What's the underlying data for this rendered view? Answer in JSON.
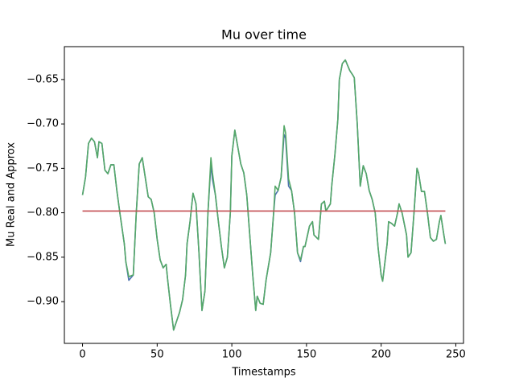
{
  "chart_data": {
    "type": "line",
    "title": "Mu over time",
    "xlabel": "Timestamps",
    "ylabel": "Mu Real and Approx",
    "x": [
      0,
      2,
      4,
      6,
      8,
      10,
      11,
      13,
      15,
      17,
      19,
      21,
      23,
      25,
      28,
      29,
      31,
      34,
      36,
      38,
      40,
      42,
      44,
      46,
      48,
      50,
      52,
      54,
      56,
      57,
      59,
      61,
      63,
      65,
      67,
      69,
      70,
      72,
      74,
      76,
      78,
      80,
      82,
      84,
      86,
      87,
      89,
      91,
      93,
      95,
      97,
      99,
      100,
      102,
      104,
      106,
      108,
      110,
      112,
      114,
      116,
      117,
      119,
      121,
      123,
      126,
      128,
      129,
      131,
      133,
      135,
      136,
      138,
      140,
      142,
      144,
      146,
      148,
      149,
      152,
      154,
      155,
      158,
      160,
      162,
      163,
      166,
      167,
      169,
      171,
      172,
      174,
      176,
      179,
      181,
      182,
      184,
      186,
      188,
      190,
      192,
      194,
      196,
      198,
      200,
      201,
      204,
      205,
      207,
      209,
      211,
      212,
      214,
      217,
      218,
      220,
      222,
      224,
      225,
      227,
      229,
      231,
      233,
      235,
      237,
      239,
      240,
      242,
      243
    ],
    "series": [
      {
        "color": "#4c72b0",
        "values": [
          -0.78,
          -0.76,
          -0.722,
          -0.716,
          -0.72,
          -0.738,
          -0.72,
          -0.722,
          -0.752,
          -0.756,
          -0.746,
          -0.746,
          -0.775,
          -0.8,
          -0.835,
          -0.855,
          -0.876,
          -0.87,
          -0.8,
          -0.745,
          -0.738,
          -0.76,
          -0.782,
          -0.785,
          -0.8,
          -0.83,
          -0.853,
          -0.862,
          -0.858,
          -0.875,
          -0.905,
          -0.932,
          -0.922,
          -0.912,
          -0.898,
          -0.87,
          -0.835,
          -0.81,
          -0.778,
          -0.79,
          -0.845,
          -0.91,
          -0.888,
          -0.8,
          -0.745,
          -0.762,
          -0.78,
          -0.81,
          -0.838,
          -0.862,
          -0.85,
          -0.8,
          -0.736,
          -0.707,
          -0.726,
          -0.745,
          -0.755,
          -0.78,
          -0.825,
          -0.87,
          -0.91,
          -0.894,
          -0.902,
          -0.903,
          -0.875,
          -0.845,
          -0.8,
          -0.78,
          -0.775,
          -0.76,
          -0.712,
          -0.716,
          -0.77,
          -0.775,
          -0.8,
          -0.845,
          -0.855,
          -0.838,
          -0.838,
          -0.815,
          -0.81,
          -0.825,
          -0.83,
          -0.79,
          -0.787,
          -0.798,
          -0.79,
          -0.768,
          -0.735,
          -0.695,
          -0.65,
          -0.632,
          -0.628,
          -0.64,
          -0.645,
          -0.648,
          -0.7,
          -0.77,
          -0.747,
          -0.756,
          -0.775,
          -0.785,
          -0.8,
          -0.84,
          -0.87,
          -0.877,
          -0.835,
          -0.81,
          -0.812,
          -0.815,
          -0.8,
          -0.79,
          -0.8,
          -0.825,
          -0.85,
          -0.845,
          -0.8,
          -0.75,
          -0.755,
          -0.776,
          -0.776,
          -0.8,
          -0.828,
          -0.832,
          -0.83,
          -0.81,
          -0.803,
          -0.825,
          -0.835
        ]
      },
      {
        "color": "#55a868",
        "values": [
          -0.78,
          -0.76,
          -0.722,
          -0.716,
          -0.72,
          -0.738,
          -0.72,
          -0.722,
          -0.752,
          -0.756,
          -0.746,
          -0.746,
          -0.775,
          -0.8,
          -0.835,
          -0.855,
          -0.872,
          -0.87,
          -0.8,
          -0.745,
          -0.738,
          -0.76,
          -0.782,
          -0.785,
          -0.8,
          -0.83,
          -0.853,
          -0.862,
          -0.858,
          -0.875,
          -0.905,
          -0.932,
          -0.922,
          -0.912,
          -0.898,
          -0.87,
          -0.835,
          -0.81,
          -0.778,
          -0.79,
          -0.845,
          -0.91,
          -0.888,
          -0.8,
          -0.738,
          -0.755,
          -0.78,
          -0.81,
          -0.838,
          -0.862,
          -0.85,
          -0.8,
          -0.736,
          -0.707,
          -0.726,
          -0.745,
          -0.755,
          -0.78,
          -0.825,
          -0.87,
          -0.91,
          -0.894,
          -0.902,
          -0.903,
          -0.875,
          -0.845,
          -0.8,
          -0.77,
          -0.775,
          -0.76,
          -0.702,
          -0.71,
          -0.762,
          -0.775,
          -0.8,
          -0.845,
          -0.853,
          -0.838,
          -0.838,
          -0.815,
          -0.81,
          -0.825,
          -0.83,
          -0.79,
          -0.787,
          -0.798,
          -0.79,
          -0.768,
          -0.735,
          -0.695,
          -0.65,
          -0.632,
          -0.628,
          -0.64,
          -0.645,
          -0.648,
          -0.7,
          -0.77,
          -0.747,
          -0.756,
          -0.775,
          -0.785,
          -0.8,
          -0.84,
          -0.87,
          -0.877,
          -0.835,
          -0.81,
          -0.812,
          -0.815,
          -0.8,
          -0.79,
          -0.8,
          -0.825,
          -0.85,
          -0.845,
          -0.8,
          -0.75,
          -0.755,
          -0.776,
          -0.776,
          -0.8,
          -0.828,
          -0.832,
          -0.83,
          -0.81,
          -0.803,
          -0.825,
          -0.835
        ]
      },
      {
        "color": "#c44e52",
        "x": [
          0,
          243
        ],
        "values": [
          -0.798,
          -0.798
        ]
      }
    ],
    "xlim": [
      -12.15,
      255.15
    ],
    "xticks": [
      0,
      50,
      100,
      150,
      200,
      250
    ],
    "ylim": [
      -0.947,
      -0.613
    ],
    "yticks": [
      {
        "value": -0.9,
        "label": "−0.90"
      },
      {
        "value": -0.85,
        "label": "−0.85"
      },
      {
        "value": -0.8,
        "label": "−0.80"
      },
      {
        "value": -0.75,
        "label": "−0.75"
      },
      {
        "value": -0.7,
        "label": "−0.70"
      },
      {
        "value": -0.65,
        "label": "−0.65"
      }
    ]
  }
}
